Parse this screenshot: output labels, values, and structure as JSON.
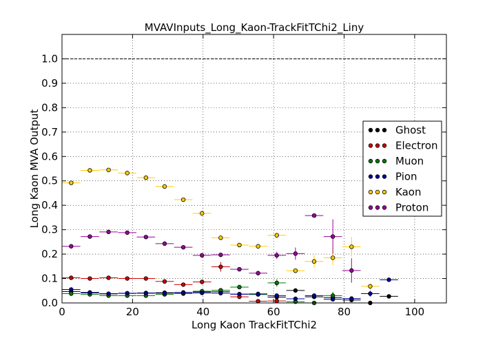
{
  "chart_data": {
    "type": "scatter",
    "title": "MVAVInputs_Long_Kaon-TrackFitTChi2_Liny",
    "xlabel": "Long Kaon TrackFitTChi2",
    "ylabel": "Long Kaon MVA Output",
    "xlim": [
      0,
      109
    ],
    "ylim": [
      0,
      1.1
    ],
    "xticks": [
      0,
      20,
      40,
      60,
      80,
      100
    ],
    "yticks": [
      0.0,
      0.1,
      0.2,
      0.3,
      0.4,
      0.5,
      0.6,
      0.7,
      0.8,
      0.9,
      1.0
    ],
    "ytick_labels": [
      "0.0",
      "0.1",
      "0.2",
      "0.3",
      "0.4",
      "0.5",
      "0.6",
      "0.7",
      "0.8",
      "0.9",
      "1.0"
    ],
    "xtick_labels": [
      "0",
      "20",
      "40",
      "60",
      "80",
      "100"
    ],
    "grid": true,
    "reference_line": 1.0,
    "legend_position": "right",
    "bin_half_width": 2.6,
    "series": [
      {
        "name": "Ghost",
        "color": "#000000",
        "x": [
          2.6,
          7.9,
          13.2,
          18.5,
          23.8,
          29.1,
          34.4,
          39.7,
          45.0,
          50.3,
          55.6,
          60.9,
          66.2,
          71.5,
          76.8,
          82.1,
          87.4,
          92.7
        ],
        "y": [
          0.047,
          0.041,
          0.037,
          0.039,
          0.041,
          0.042,
          0.043,
          0.045,
          0.046,
          0.036,
          0.035,
          0.024,
          0.051,
          0.025,
          0.022,
          0.012,
          0.0,
          0.027
        ],
        "yerr": [
          0.003,
          0.003,
          0.003,
          0.003,
          0.003,
          0.003,
          0.003,
          0.003,
          0.004,
          0.004,
          0.005,
          0.006,
          0.004,
          0.005,
          0.006,
          0.004,
          0.003,
          0.004
        ]
      },
      {
        "name": "Electron",
        "color": "#cc0000",
        "x": [
          2.6,
          7.9,
          13.2,
          18.5,
          23.8,
          29.1,
          34.4,
          39.7,
          45.0,
          50.3,
          55.6,
          60.9
        ],
        "y": [
          0.103,
          0.1,
          0.103,
          0.1,
          0.1,
          0.088,
          0.075,
          0.086,
          0.148,
          0.025,
          0.007,
          0.008
        ],
        "yerr": [
          0.004,
          0.004,
          0.004,
          0.004,
          0.004,
          0.005,
          0.006,
          0.006,
          0.02,
          0.005,
          0.004,
          0.004
        ]
      },
      {
        "name": "Muon",
        "color": "#007700",
        "x": [
          2.6,
          7.9,
          13.2,
          18.5,
          23.8,
          29.1,
          34.4,
          39.7,
          45.0,
          50.3,
          55.6,
          60.9,
          66.2,
          71.5,
          76.8
        ],
        "y": [
          0.038,
          0.035,
          0.03,
          0.03,
          0.03,
          0.035,
          0.038,
          0.048,
          0.052,
          0.065,
          0.035,
          0.082,
          0.005,
          0.0,
          0.03
        ],
        "yerr": [
          0.003,
          0.003,
          0.003,
          0.003,
          0.003,
          0.003,
          0.004,
          0.005,
          0.006,
          0.008,
          0.006,
          0.015,
          0.003,
          0.003,
          0.015
        ]
      },
      {
        "name": "Pion",
        "color": "#000099",
        "x": [
          2.6,
          7.9,
          13.2,
          18.5,
          23.8,
          29.1,
          34.4,
          39.7,
          45.0,
          50.3,
          55.6,
          60.9,
          66.2,
          71.5,
          76.8,
          82.1,
          87.4,
          92.7
        ],
        "y": [
          0.055,
          0.043,
          0.038,
          0.04,
          0.04,
          0.04,
          0.042,
          0.041,
          0.04,
          0.036,
          0.037,
          0.03,
          0.017,
          0.03,
          0.015,
          0.018,
          0.038,
          0.095
        ],
        "yerr": [
          0.003,
          0.003,
          0.003,
          0.003,
          0.003,
          0.003,
          0.003,
          0.003,
          0.004,
          0.004,
          0.005,
          0.006,
          0.004,
          0.005,
          0.006,
          0.004,
          0.012,
          0.004
        ]
      },
      {
        "name": "Kaon",
        "color": "#ffcc00",
        "x": [
          2.6,
          7.9,
          13.2,
          18.5,
          23.8,
          29.1,
          34.4,
          39.7,
          45.0,
          50.3,
          55.6,
          60.9,
          66.2,
          71.5,
          76.8,
          82.1,
          87.4
        ],
        "y": [
          0.492,
          0.543,
          0.545,
          0.532,
          0.513,
          0.477,
          0.423,
          0.367,
          0.267,
          0.237,
          0.232,
          0.277,
          0.132,
          0.17,
          0.185,
          0.23,
          0.068
        ],
        "yerr": [
          0.005,
          0.005,
          0.005,
          0.005,
          0.005,
          0.005,
          0.006,
          0.007,
          0.008,
          0.008,
          0.01,
          0.012,
          0.01,
          0.025,
          0.03,
          0.04,
          0.015
        ]
      },
      {
        "name": "Proton",
        "color": "#990099",
        "x": [
          2.6,
          7.9,
          13.2,
          18.5,
          23.8,
          29.1,
          34.4,
          39.7,
          45.0,
          50.3,
          55.6,
          60.9,
          66.2,
          71.5,
          76.8,
          82.1
        ],
        "y": [
          0.232,
          0.272,
          0.291,
          0.288,
          0.27,
          0.243,
          0.228,
          0.195,
          0.197,
          0.138,
          0.122,
          0.195,
          0.202,
          0.358,
          0.272,
          0.133
        ],
        "yerr": [
          0.005,
          0.005,
          0.005,
          0.005,
          0.005,
          0.005,
          0.006,
          0.006,
          0.007,
          0.008,
          0.009,
          0.015,
          0.025,
          0.006,
          0.07,
          0.05
        ]
      }
    ]
  }
}
